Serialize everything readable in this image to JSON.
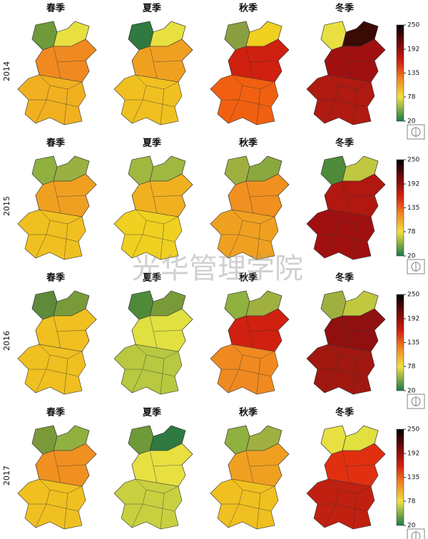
{
  "watermark": "光华管理学院",
  "colorbar": {
    "lim": [
      20,
      250
    ],
    "ticks": [
      20,
      78,
      135,
      192,
      250
    ]
  },
  "rows": [
    {
      "year": "2014",
      "panels": [
        {
          "season": "春季",
          "colors": [
            "#6e9a3a",
            "#e8e040",
            "#f08a20",
            "#f0b020"
          ]
        },
        {
          "season": "夏季",
          "colors": [
            "#2e7a40",
            "#e8e040",
            "#f0a020",
            "#f0c020"
          ]
        },
        {
          "season": "秋季",
          "colors": [
            "#8aa040",
            "#f0d020",
            "#d02010",
            "#f06010"
          ]
        },
        {
          "season": "冬季",
          "colors": [
            "#e8e040",
            "#3a0a05",
            "#a01010",
            "#b01a10"
          ]
        }
      ]
    },
    {
      "year": "2015",
      "panels": [
        {
          "season": "春季",
          "colors": [
            "#90b040",
            "#9ab040",
            "#f0a020",
            "#f0c020"
          ]
        },
        {
          "season": "夏季",
          "colors": [
            "#a0b840",
            "#a0b840",
            "#f0b020",
            "#f0d020"
          ]
        },
        {
          "season": "秋季",
          "colors": [
            "#a0b040",
            "#8aa840",
            "#f09020",
            "#f0a020"
          ]
        },
        {
          "season": "冬季",
          "colors": [
            "#4e8a3a",
            "#c0c840",
            "#b01810",
            "#a01010"
          ]
        }
      ]
    },
    {
      "year": "2016",
      "panels": [
        {
          "season": "春季",
          "colors": [
            "#5e8a3a",
            "#7a9a3a",
            "#f0c020",
            "#f0c020"
          ]
        },
        {
          "season": "夏季",
          "colors": [
            "#4e8a3a",
            "#7a9a3a",
            "#e0e040",
            "#b8c840"
          ]
        },
        {
          "season": "秋季",
          "colors": [
            "#90b040",
            "#a0b040",
            "#d02010",
            "#f08a20"
          ]
        },
        {
          "season": "冬季",
          "colors": [
            "#a0b040",
            "#c0c840",
            "#901010",
            "#a01810"
          ]
        }
      ]
    },
    {
      "year": "2017",
      "panels": [
        {
          "season": "春季",
          "colors": [
            "#7a9a3a",
            "#90b040",
            "#f09020",
            "#f0c020"
          ]
        },
        {
          "season": "夏季",
          "colors": [
            "#6e9a3a",
            "#2e7a40",
            "#e8e040",
            "#c8d040"
          ]
        },
        {
          "season": "秋季",
          "colors": [
            "#90b040",
            "#a0b040",
            "#f0a020",
            "#f0c020"
          ]
        },
        {
          "season": "冬季",
          "colors": [
            "#e8e040",
            "#e0e040",
            "#e03010",
            "#c02010"
          ]
        }
      ]
    }
  ]
}
